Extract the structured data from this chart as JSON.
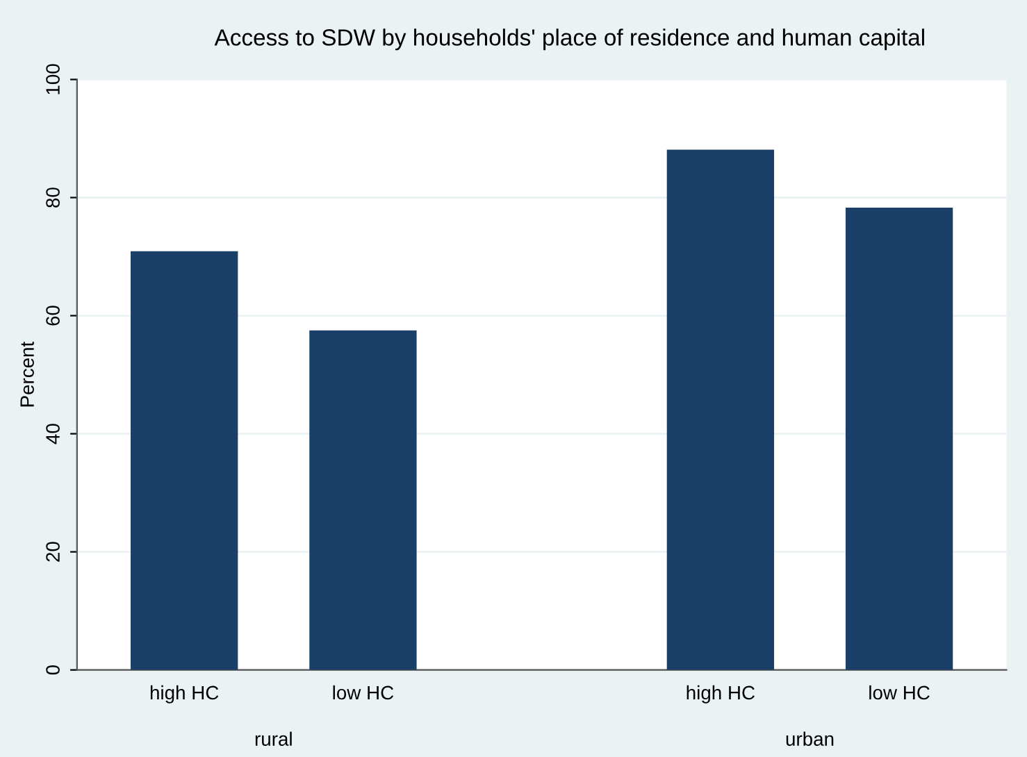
{
  "chart_data": {
    "type": "bar",
    "title": "Access to SDW by households' place of residence and human capital",
    "ylabel": "Percent",
    "categories": [
      "high HC",
      "low HC",
      null,
      "high HC",
      "low HC"
    ],
    "values": [
      70.9,
      57.5,
      null,
      88.1,
      78.3
    ],
    "color": "#1a406a",
    "annotations": [
      "rural",
      "urban"
    ],
    "ylim": [
      0,
      100
    ],
    "yticks": [
      0,
      20,
      40,
      60,
      80,
      100
    ],
    "grid": "y"
  }
}
